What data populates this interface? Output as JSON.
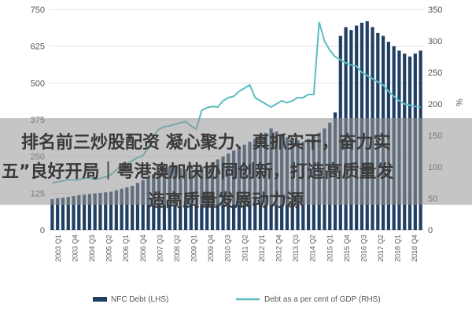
{
  "chart_data": {
    "type": "bar",
    "title": "",
    "ylabel_left": "",
    "ylabel_right": "%",
    "ylim_left": [
      0,
      750
    ],
    "ylim_right": [
      0,
      350
    ],
    "left_ticks": [
      0,
      125,
      250,
      375,
      500,
      625,
      750
    ],
    "right_ticks": [
      0,
      50,
      100,
      150,
      200,
      250,
      300,
      350
    ],
    "x_labels": [
      "2003 Q1",
      "2003 Q4",
      "2004 Q3",
      "2005 Q2",
      "2006 Q1",
      "2006 Q4",
      "2007 Q3",
      "2008 Q2",
      "2009 Q1",
      "2009 Q4",
      "2010 Q3",
      "2011 Q2",
      "2012 Q1",
      "2012 Q4",
      "2013 Q3",
      "2014 Q2",
      "2015 Q1",
      "2015 Q4",
      "2016 Q3",
      "2017 Q2",
      "2018 Q1",
      "2018 Q4"
    ],
    "series": [
      {
        "name": "NFC Debt (LHS)",
        "kind": "bar",
        "axis": "left",
        "color": "#1f3f63",
        "values": [
          105,
          108,
          110,
          112,
          115,
          118,
          120,
          122,
          124,
          126,
          128,
          130,
          135,
          140,
          145,
          150,
          160,
          170,
          180,
          190,
          200,
          210,
          215,
          220,
          210,
          205,
          200,
          210,
          215,
          220,
          230,
          240,
          250,
          260,
          270,
          280,
          290,
          300,
          310,
          320,
          330,
          345,
          335,
          325,
          315,
          310,
          305,
          300,
          310,
          320,
          330,
          345,
          365,
          400,
          660,
          690,
          680,
          695,
          705,
          710,
          690,
          670,
          660,
          640,
          625,
          610,
          600,
          590,
          600,
          610
        ]
      },
      {
        "name": "Debt as a per cent of GDP (RHS)",
        "kind": "line",
        "axis": "right",
        "color": "#5bbcc0",
        "values": [
          75,
          76,
          78,
          80,
          79,
          80,
          82,
          83,
          80,
          82,
          84,
          88,
          95,
          104,
          105,
          110,
          115,
          118,
          130,
          150,
          160,
          164,
          165,
          168,
          170,
          172,
          165,
          160,
          190,
          194,
          196,
          195,
          205,
          210,
          212,
          220,
          225,
          230,
          210,
          205,
          200,
          195,
          200,
          205,
          202,
          205,
          210,
          210,
          215,
          215,
          330,
          300,
          285,
          275,
          270,
          265,
          262,
          260,
          250,
          245,
          240,
          235,
          230,
          220,
          212,
          205,
          200,
          198,
          196,
          195
        ]
      }
    ]
  },
  "overlay": {
    "line1": "排名前三炒股配资 凝心聚力、真抓实干，奋力实",
    "line2": "五”良好开局｜粤港澳加快协同创新，打造高质量发",
    "line3": "造高质量发展动力源"
  }
}
